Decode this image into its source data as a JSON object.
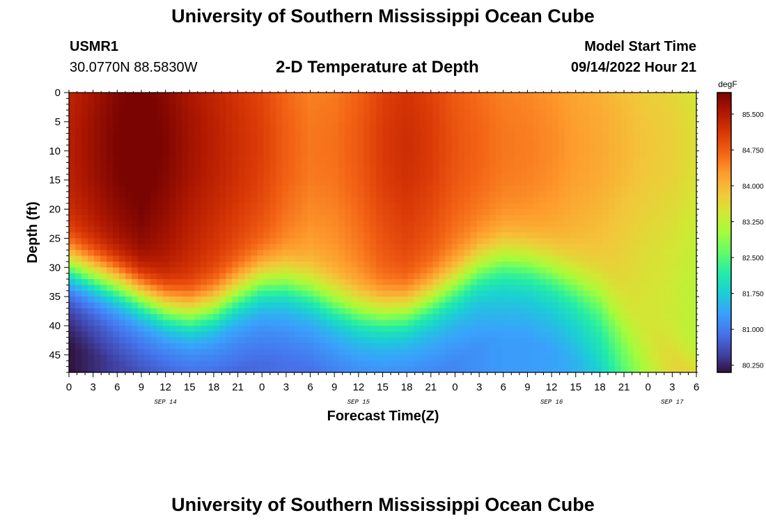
{
  "header": {
    "title": "University of Southern Mississippi Ocean Cube",
    "station_id": "USMR1",
    "coordinates": "30.0770N  88.5830W",
    "model_start_label": "Model Start Time",
    "model_start_value": "09/14/2022 Hour 21"
  },
  "footer": {
    "title": "University of Southern Mississippi Ocean Cube"
  },
  "colors": {
    "text": "#000000",
    "background": "#ffffff",
    "colormap": [
      "#30123b",
      "#4145ab",
      "#4675ed",
      "#39a2fc",
      "#1bcfd4",
      "#24eca6",
      "#61fc6c",
      "#a4fc3b",
      "#d1e834",
      "#f3c63a",
      "#fe9b2d",
      "#f36315",
      "#d93806",
      "#b11901",
      "#7a0402"
    ]
  },
  "chart_data": {
    "type": "heatmap",
    "title": "2-D Temperature at Depth",
    "xlabel": "Forecast Time(Z)",
    "ylabel": "Depth (ft)",
    "x_unit": "hours since Sep 14 00Z",
    "x_range": [
      0,
      78
    ],
    "x_ticks": [
      0,
      3,
      6,
      9,
      12,
      15,
      18,
      21,
      24,
      27,
      30,
      33,
      36,
      39,
      42,
      45,
      48,
      51,
      54,
      57,
      60,
      63,
      66,
      69,
      72,
      75,
      78
    ],
    "x_tick_labels": [
      "0",
      "3",
      "6",
      "9",
      "12",
      "15",
      "18",
      "21",
      "0",
      "3",
      "6",
      "9",
      "12",
      "15",
      "18",
      "21",
      "0",
      "3",
      "6",
      "9",
      "12",
      "15",
      "18",
      "21",
      "0",
      "3",
      "6"
    ],
    "day_labels": [
      {
        "label": "SEP 14",
        "x": 12
      },
      {
        "label": "SEP 15",
        "x": 36
      },
      {
        "label": "SEP 16",
        "x": 60
      },
      {
        "label": "SEP 17",
        "x": 75
      }
    ],
    "y_range": [
      0,
      48
    ],
    "y_ticks": [
      0,
      5,
      10,
      15,
      20,
      25,
      30,
      35,
      40,
      45
    ],
    "colorbar": {
      "unit": "degF",
      "min": 80.1,
      "max": 85.95,
      "tick_values": [
        80.25,
        81.0,
        81.75,
        82.5,
        83.25,
        84.0,
        84.75,
        85.5
      ],
      "tick_labels": [
        "80.250",
        "81.000",
        "81.750",
        "82.500",
        "83.250",
        "84.000",
        "84.750",
        "85.500"
      ]
    },
    "thermocline_depth_ft": {
      "x": [
        0,
        3,
        6,
        9,
        12,
        15,
        18,
        21,
        24,
        27,
        30,
        33,
        36,
        39,
        42,
        45,
        48,
        51,
        54,
        57,
        60,
        63,
        66,
        69,
        72,
        75,
        78
      ],
      "depth": [
        29.5,
        31,
        32.5,
        34.5,
        36.5,
        37.5,
        36.5,
        34,
        32,
        32,
        33.5,
        35.5,
        37,
        37.5,
        37,
        35,
        32.5,
        29.5,
        28,
        28.5,
        30,
        32,
        34,
        38,
        41,
        44.5,
        48
      ]
    },
    "surface_layer_temp_degF": {
      "x": [
        0,
        3,
        6,
        9,
        12,
        15,
        18,
        21,
        24,
        27,
        30,
        33,
        36,
        39,
        42,
        45,
        48,
        51,
        54,
        57,
        60,
        63,
        66,
        69,
        72,
        75,
        78
      ],
      "temp": [
        85.2,
        85.45,
        85.7,
        85.85,
        85.65,
        85.4,
        85.2,
        85.0,
        84.8,
        84.5,
        84.3,
        84.35,
        84.55,
        84.85,
        85.0,
        84.85,
        84.6,
        84.45,
        84.3,
        84.25,
        84.15,
        84.0,
        83.9,
        83.75,
        83.6,
        83.5,
        83.3
      ]
    },
    "bottom_temp_degF": {
      "x": [
        0,
        3,
        6,
        9,
        12,
        15,
        18,
        21,
        24,
        27,
        30,
        33,
        36,
        39,
        42,
        45,
        48,
        51,
        54,
        57,
        60,
        63,
        66,
        69,
        72,
        75,
        78
      ],
      "temp": [
        80.1,
        80.3,
        80.5,
        80.6,
        80.65,
        80.7,
        80.75,
        80.8,
        80.85,
        80.9,
        80.9,
        80.95,
        81.0,
        81.0,
        81.0,
        81.05,
        81.1,
        81.2,
        81.3,
        81.3,
        81.35,
        81.5,
        81.8,
        82.3,
        82.8,
        83.2,
        83.4
      ]
    }
  }
}
